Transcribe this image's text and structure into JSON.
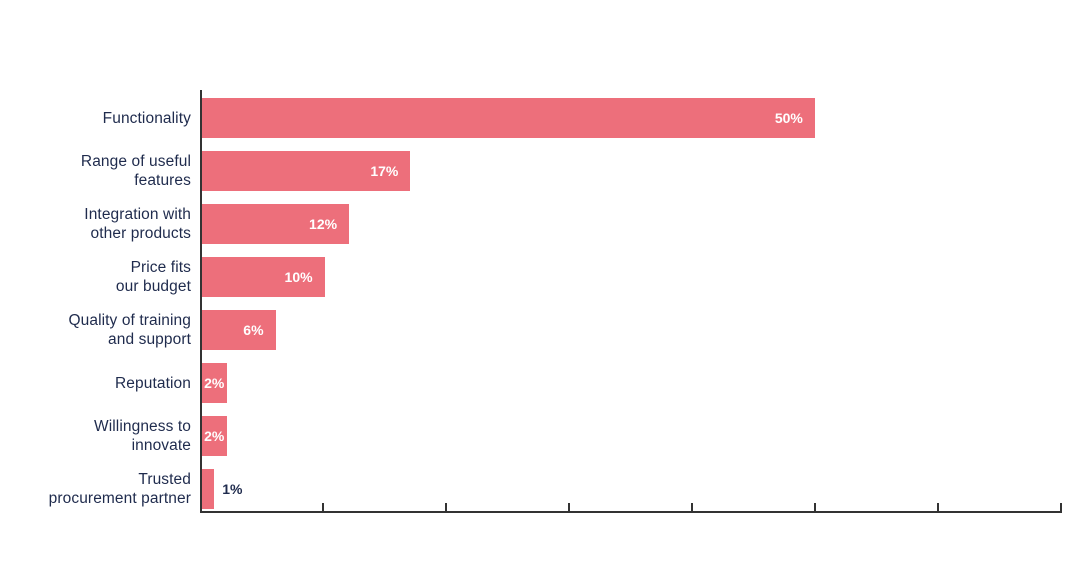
{
  "chart_data": {
    "type": "bar",
    "orientation": "horizontal",
    "title": "",
    "categories": [
      "Functionality",
      "Range of useful\nfeatures",
      "Integration with\nother products",
      "Price fits\nour budget",
      "Quality of training\nand support",
      "Reputation",
      "Willingness to\ninnovate",
      "Trusted\nprocurement partner"
    ],
    "values": [
      50,
      17,
      12,
      10,
      6,
      2,
      2,
      1
    ],
    "value_labels": [
      "50%",
      "17%",
      "12%",
      "10%",
      "6%",
      "2%",
      "2%",
      "1%"
    ],
    "value_label_placement": [
      "inside",
      "inside",
      "inside",
      "inside",
      "inside",
      "inside-center",
      "inside-center",
      "outside"
    ],
    "xlim": [
      0,
      70
    ],
    "x_tick_step": 10,
    "x_tick_labels_visible": false,
    "grid": false,
    "legend": "none",
    "colors": {
      "bar": "#ed6f7b",
      "category_label": "#1f2b4d",
      "value_inside": "#ffffff",
      "value_outside": "#1f2b4d",
      "axis": "#333333"
    }
  }
}
